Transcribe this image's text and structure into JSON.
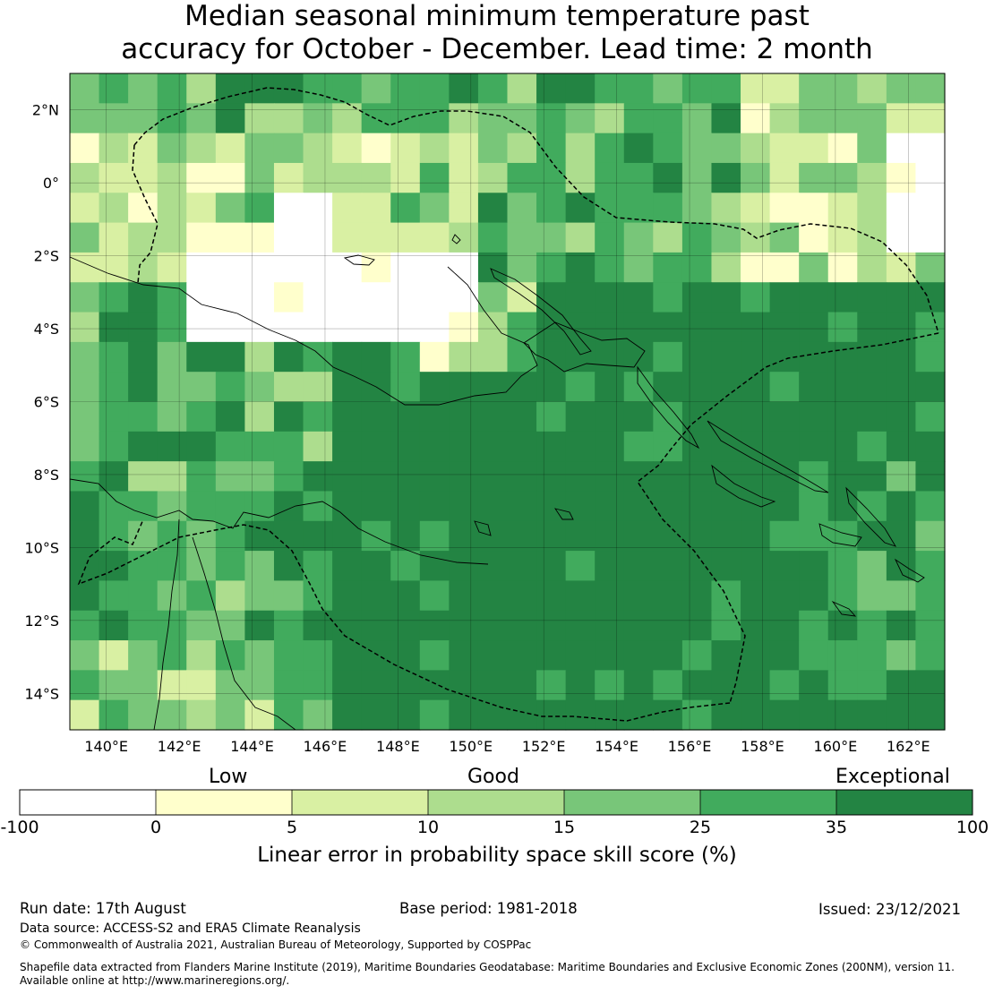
{
  "title": {
    "line1": "Median seasonal minimum temperature past",
    "line2": "accuracy for October - December. Lead time: 2 month"
  },
  "map": {
    "lon_labels": [
      "140°E",
      "142°E",
      "144°E",
      "146°E",
      "148°E",
      "150°E",
      "152°E",
      "154°E",
      "156°E",
      "158°E",
      "160°E",
      "162°E"
    ],
    "lat_labels": [
      "2°N",
      "0°",
      "2°S",
      "4°S",
      "6°S",
      "8°S",
      "10°S",
      "12°S",
      "14°S"
    ],
    "lon_range": [
      139.0,
      163.0
    ],
    "lat_range": [
      -15.0,
      3.0
    ],
    "grid": true,
    "eez_boundary_style": "dashed"
  },
  "legend": {
    "categories": [
      {
        "label": "Low"
      },
      {
        "label": "Good"
      },
      {
        "label": "Exceptional"
      }
    ],
    "bounds": [
      "-100",
      "0",
      "5",
      "10",
      "15",
      "25",
      "35",
      "100"
    ],
    "colors": [
      "#ffffff",
      "#ffffcc",
      "#d9f0a3",
      "#addd8e",
      "#78c679",
      "#41ab5d",
      "#238443"
    ],
    "label": "Linear error in probability space skill score (%)"
  },
  "footer": {
    "run_date": "Run date: 17th August",
    "base_period": "Base period: 1981-2018",
    "issued": "Issued: 23/12/2021",
    "data_source": "Data source: ACCESS-S2 and ERA5 Climate Reanalysis",
    "copyright": "© Commonwealth of Australia 2021, Australian Bureau of Meteorology, Supported by COSPPac",
    "shapefile1": "Shapefile data extracted from Flanders Marine Institute (2019), Maritime Boundaries Geodatabase: Maritime Boundaries and Exclusive Economic Zones (200NM), version 11.",
    "shapefile2": "Available online at http://www.marineregions.org/."
  }
}
